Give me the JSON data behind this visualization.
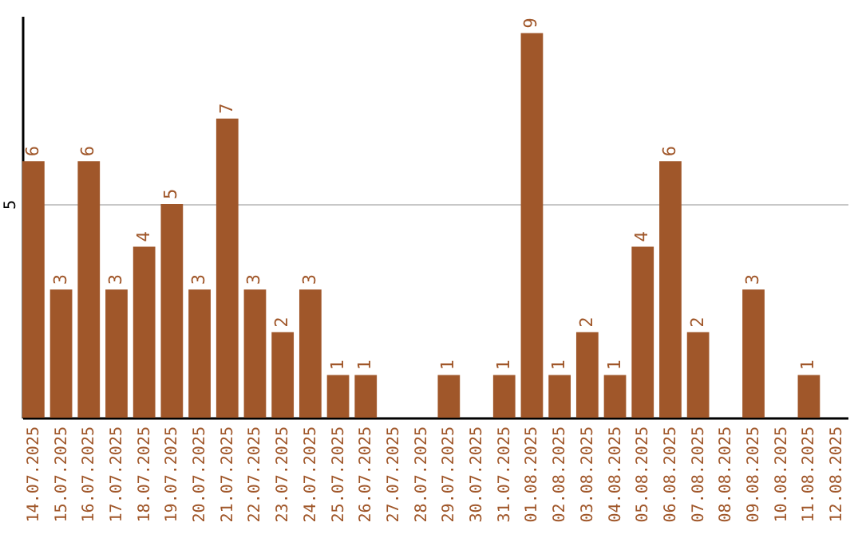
{
  "chart_data": {
    "type": "bar",
    "categories": [
      "14.07.2025",
      "15.07.2025",
      "16.07.2025",
      "17.07.2025",
      "18.07.2025",
      "19.07.2025",
      "20.07.2025",
      "21.07.2025",
      "22.07.2025",
      "23.07.2025",
      "24.07.2025",
      "25.07.2025",
      "26.07.2025",
      "27.07.2025",
      "28.07.2025",
      "29.07.2025",
      "30.07.2025",
      "31.07.2025",
      "01.08.2025",
      "02.08.2025",
      "03.08.2025",
      "04.08.2025",
      "05.08.2025",
      "06.08.2025",
      "07.08.2025",
      "08.08.2025",
      "09.08.2025",
      "10.08.2025",
      "11.08.2025",
      "12.08.2025"
    ],
    "values": [
      6,
      3,
      6,
      3,
      4,
      5,
      3,
      7,
      3,
      2,
      3,
      1,
      1,
      null,
      null,
      1,
      null,
      1,
      9,
      1,
      2,
      1,
      4,
      6,
      2,
      null,
      3,
      null,
      1,
      null
    ],
    "color": "#a0572a",
    "ylim": [
      0,
      9.4
    ],
    "yticks": [
      5
    ],
    "grid": "y",
    "data_labels": true
  }
}
